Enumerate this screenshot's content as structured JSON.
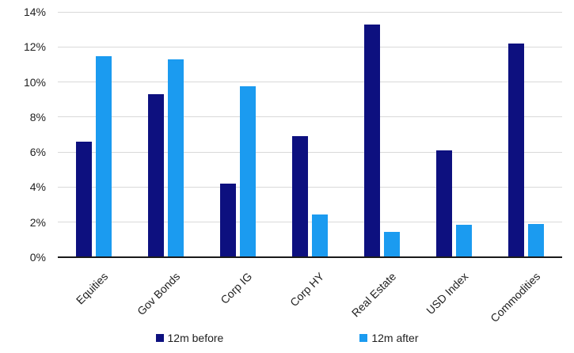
{
  "chart_data": {
    "type": "bar",
    "title": "",
    "categories": [
      "Equities",
      "Gov Bonds",
      "Corp IG",
      "Corp HY",
      "Real Estate",
      "USD Index",
      "Commodities"
    ],
    "series": [
      {
        "name": "12m before",
        "color": "#0d107f",
        "values": [
          6.6,
          9.3,
          4.2,
          6.9,
          13.3,
          6.1,
          12.2
        ]
      },
      {
        "name": "12m after",
        "color": "#1b9bf0",
        "values": [
          11.45,
          11.3,
          9.75,
          2.45,
          1.45,
          1.85,
          1.9
        ]
      }
    ],
    "y_axis": {
      "ticks": [
        "0%",
        "2%",
        "4%",
        "6%",
        "8%",
        "10%",
        "12%",
        "14%"
      ],
      "min": 0,
      "max": 14,
      "unit": "%"
    },
    "xlabel": "",
    "ylabel": "",
    "grid": true,
    "legend_position": "bottom",
    "x_label_rotation_deg": -45,
    "colors": {
      "gridline": "#d9d9d9",
      "axis_line": "#1a1a1a",
      "text": "#1f1f1f"
    }
  }
}
